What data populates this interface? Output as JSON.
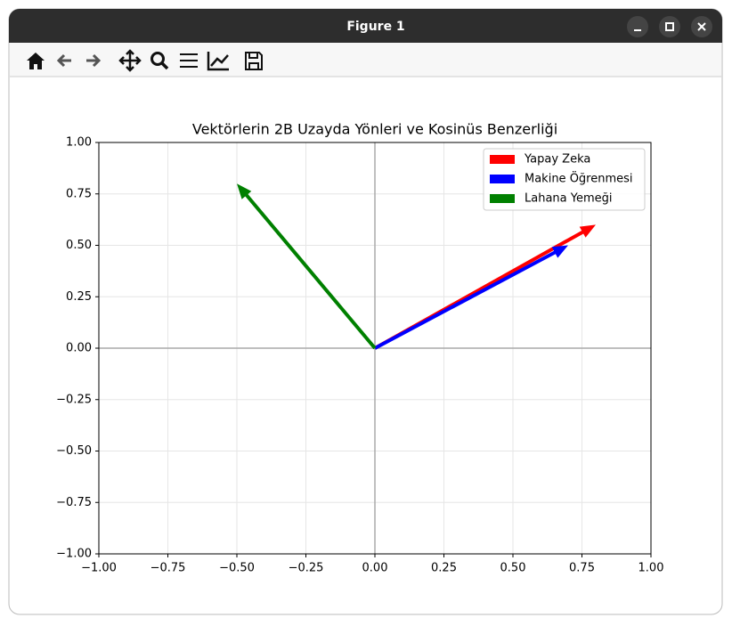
{
  "window": {
    "title": "Figure 1"
  },
  "chart_data": {
    "type": "quiver",
    "title": "Vektörlerin 2B Uzayda Yönleri ve Kosinüs Benzerliği",
    "series": [
      {
        "name": "Yapay Zeka",
        "color": "#ff0000",
        "x": [
          0.8
        ],
        "values": [
          0.6
        ]
      },
      {
        "name": "Makine Öğrenmesi",
        "color": "#0000ff",
        "x": [
          0.7
        ],
        "values": [
          0.5
        ]
      },
      {
        "name": "Lahana Yemeği",
        "color": "#008000",
        "x": [
          -0.5
        ],
        "values": [
          0.8
        ]
      }
    ],
    "xlim": [
      -1,
      1
    ],
    "ylim": [
      -1,
      1
    ],
    "xticks": [
      {
        "value": -1,
        "label": "−1.00"
      },
      {
        "value": -0.75,
        "label": "−0.75"
      },
      {
        "value": -0.5,
        "label": "−0.50"
      },
      {
        "value": -0.25,
        "label": "−0.25"
      },
      {
        "value": 0,
        "label": "0.00"
      },
      {
        "value": 0.25,
        "label": "0.25"
      },
      {
        "value": 0.5,
        "label": "0.50"
      },
      {
        "value": 0.75,
        "label": "0.75"
      },
      {
        "value": 1,
        "label": "1.00"
      }
    ],
    "yticks": [
      {
        "value": -1,
        "label": "−1.00"
      },
      {
        "value": -0.75,
        "label": "−0.75"
      },
      {
        "value": -0.5,
        "label": "−0.50"
      },
      {
        "value": -0.25,
        "label": "−0.25"
      },
      {
        "value": 0,
        "label": "0.00"
      },
      {
        "value": 0.25,
        "label": "0.25"
      },
      {
        "value": 0.5,
        "label": "0.50"
      },
      {
        "value": 0.75,
        "label": "0.75"
      },
      {
        "value": 1,
        "label": "1.00"
      }
    ],
    "grid": true,
    "legend": "upper right"
  }
}
